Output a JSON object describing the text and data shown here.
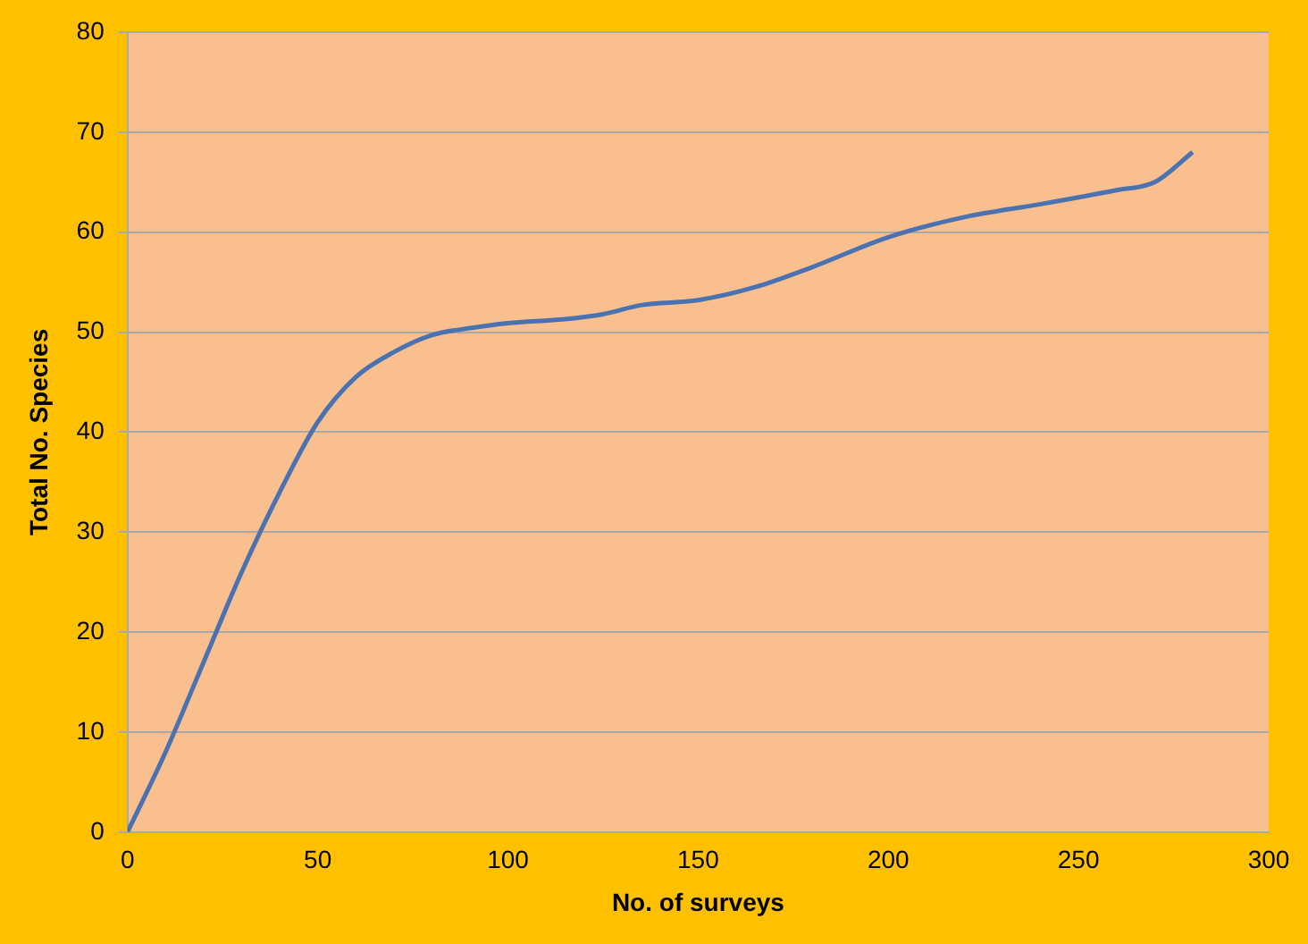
{
  "chart_data": {
    "type": "line",
    "xlabel": "No. of surveys",
    "ylabel": "Total No. Species",
    "x": [
      0,
      10,
      20,
      30,
      40,
      50,
      60,
      70,
      80,
      90,
      100,
      115,
      125,
      135,
      150,
      165,
      180,
      200,
      220,
      240,
      260,
      270,
      280
    ],
    "series": [
      {
        "color": "#4a72b0",
        "values": [
          0,
          8,
          17,
          26,
          34,
          41,
          45.5,
          48,
          49.7,
          50.4,
          50.9,
          51.3,
          51.8,
          52.7,
          53.2,
          54.5,
          56.5,
          59.5,
          61.5,
          62.8,
          64.2,
          65,
          68
        ]
      }
    ],
    "xlim": [
      0,
      300
    ],
    "xticks": [
      0,
      50,
      100,
      150,
      200,
      250,
      300
    ],
    "ylim": [
      0,
      80
    ],
    "yticks": [
      0,
      10,
      20,
      30,
      40,
      50,
      60,
      70,
      80
    ],
    "grid": "y",
    "legend": false,
    "marker": "none",
    "line_style": "solid"
  }
}
